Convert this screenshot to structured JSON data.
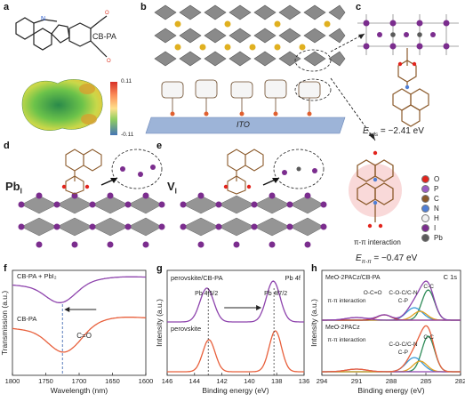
{
  "panels": {
    "a": {
      "label": "a",
      "molecule": "CB-PA",
      "cbar_max": "0.11",
      "cbar_min": "-0.11"
    },
    "b": {
      "label": "b",
      "substrate": "ITO"
    },
    "c": {
      "label": "c",
      "energy_prefix": "E",
      "energy_sub": "ads",
      "energy_value": " = −2.41 eV"
    },
    "d": {
      "label": "d",
      "defect": "Pb",
      "defect_sub": "I"
    },
    "e": {
      "label": "e",
      "defect": "V",
      "defect_sub": "I"
    },
    "f": {
      "label": "f"
    },
    "g": {
      "label": "g"
    },
    "h": {
      "label": "h"
    }
  },
  "legend_atoms": [
    {
      "symbol": "O",
      "color": "#e2241d"
    },
    {
      "symbol": "P",
      "color": "#9b5cc4"
    },
    {
      "symbol": "C",
      "color": "#8b5a2b"
    },
    {
      "symbol": "N",
      "color": "#4f7fd6"
    },
    {
      "symbol": "H",
      "color": "#f2f2f2"
    },
    {
      "symbol": "I",
      "color": "#7b2d8e"
    },
    {
      "symbol": "Pb",
      "color": "#5a5a5a"
    }
  ],
  "pi_stack": {
    "label": "π-π interaction",
    "energy_prefix": "E",
    "energy_sub": "π-π",
    "energy_value": " = −0.47 eV"
  },
  "chart_data": [
    {
      "type": "line",
      "panel": "f",
      "xlabel": "Wavelength (nm)",
      "ylabel": "Transmission (a.u.)",
      "x_ticks": [
        "1800",
        "1750",
        "1700",
        "1650",
        "1600"
      ],
      "xlim": [
        1800,
        1600
      ],
      "series": [
        {
          "name": "CB-PA + PbI₂",
          "color": "#8e44ad"
        },
        {
          "name": "CB-PA",
          "color": "#e8603c"
        }
      ],
      "annotation": "C=O",
      "peak_x": 1725
    },
    {
      "type": "line",
      "panel": "g",
      "title": "Pb 4f",
      "xlabel": "Binding energy (eV)",
      "ylabel": "Intensity (a.u.)",
      "x_ticks": [
        "146",
        "144",
        "142",
        "140",
        "138",
        "136"
      ],
      "xlim": [
        146,
        136
      ],
      "series": [
        {
          "name": "perovskite/CB-PA",
          "color": "#8e44ad",
          "peaks": [
            143.0,
            138.2
          ]
        },
        {
          "name": "perovskite",
          "color": "#e8603c",
          "peaks": [
            143.0,
            138.2
          ]
        }
      ],
      "peak_labels": [
        "Pb 4f5/2",
        "Pb 4f7/2"
      ]
    },
    {
      "type": "line",
      "panel": "h",
      "title": "C 1s",
      "xlabel": "Binding energy (eV)",
      "ylabel": "Intensity (a.u.)",
      "x_ticks": [
        "294",
        "291",
        "288",
        "285",
        "282"
      ],
      "xlim": [
        294,
        282
      ],
      "series": [
        {
          "name": "MeO-2PACz/CB-PA",
          "color": "#8e44ad"
        },
        {
          "name": "MeO-2PACz",
          "color": "#e8603c"
        }
      ],
      "component_labels_top": [
        "C-C",
        "C-O-C/C-N",
        "C-P",
        "O-C=O",
        "π-π interaction"
      ],
      "component_labels_bottom": [
        "C-C",
        "C-O-C/C-N",
        "C-P",
        "π-π interaction"
      ]
    }
  ]
}
